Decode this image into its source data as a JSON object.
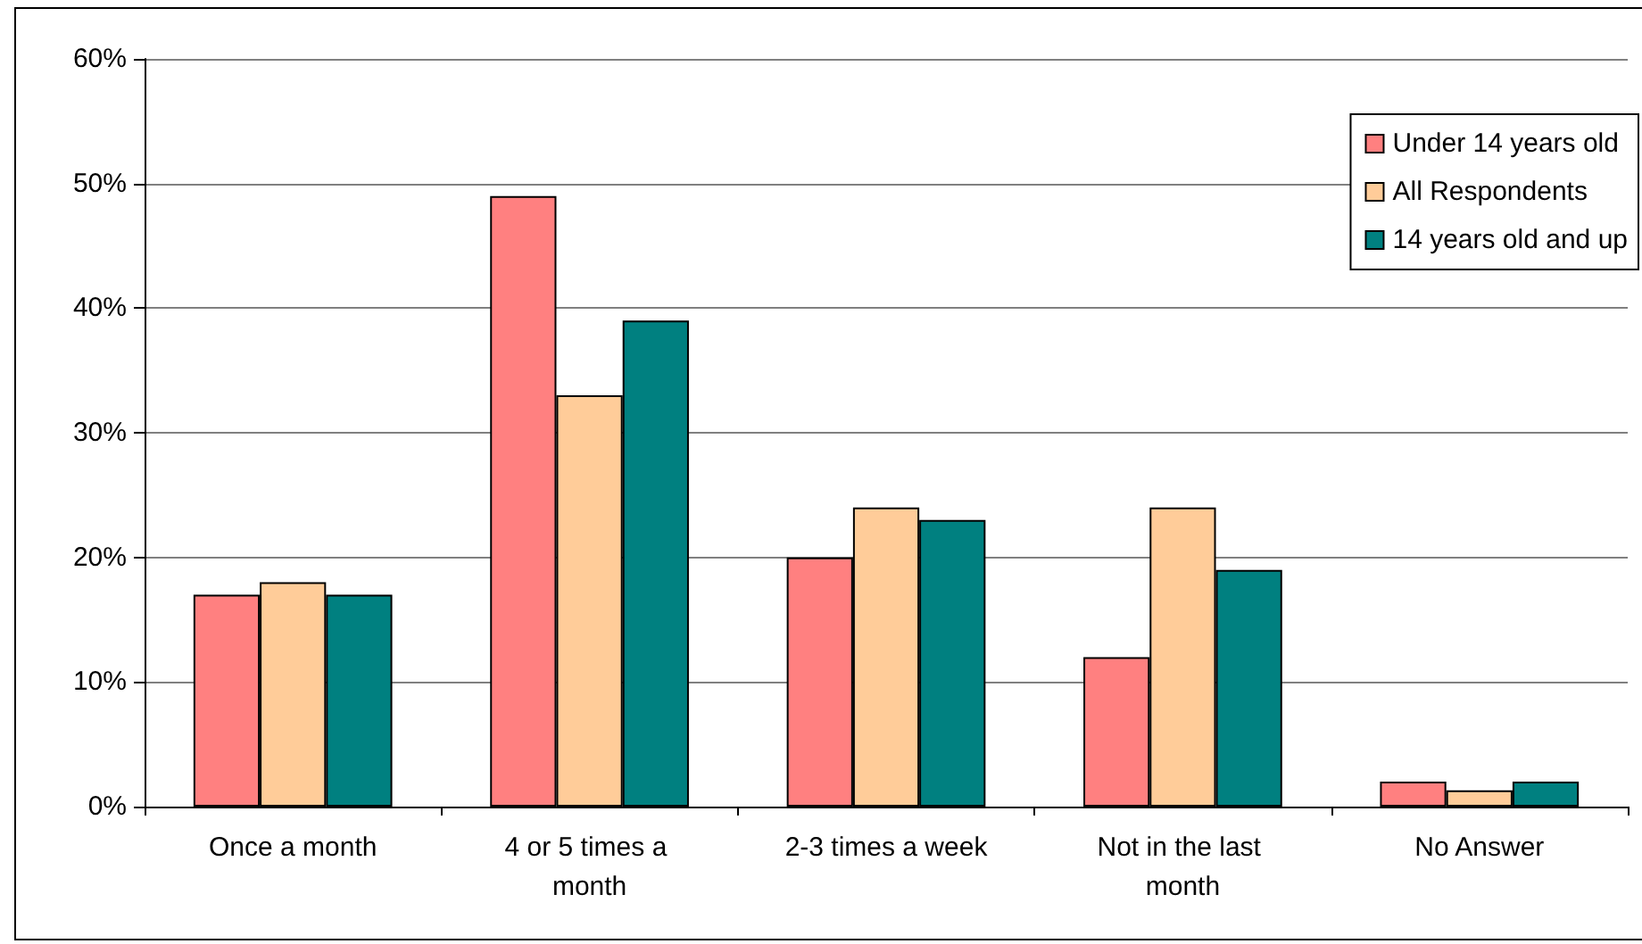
{
  "chart_data": {
    "type": "bar",
    "categories": [
      "Once a month",
      "4 or 5 times a month",
      "2-3 times a week",
      "Not in the last month",
      "No Answer"
    ],
    "series": [
      {
        "name": "Under 14 years old",
        "color": "#ff8080",
        "values": [
          17,
          49,
          20,
          12,
          2
        ]
      },
      {
        "name": "All Respondents",
        "color": "#ffcc99",
        "values": [
          18,
          33,
          24,
          24,
          1.3
        ]
      },
      {
        "name": "14 years old and up",
        "color": "#008080",
        "values": [
          17,
          39,
          23,
          19,
          2
        ]
      }
    ],
    "ylim": [
      0,
      60
    ],
    "yticks": [
      {
        "value": 0,
        "label": "0%"
      },
      {
        "value": 10,
        "label": "10%"
      },
      {
        "value": 20,
        "label": "20%"
      },
      {
        "value": 30,
        "label": "30%"
      },
      {
        "value": 40,
        "label": "40%"
      },
      {
        "value": 50,
        "label": "50%"
      },
      {
        "value": 60,
        "label": "60%"
      }
    ],
    "grid": "y",
    "legend": "top right"
  }
}
